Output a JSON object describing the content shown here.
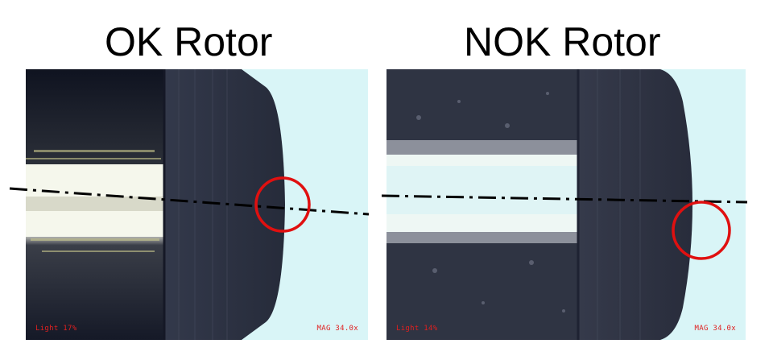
{
  "panels": [
    {
      "title": "OK Rotor",
      "light": "Light 17%",
      "mag": "MAG 34.0x"
    },
    {
      "title": "NOK Rotor",
      "light": "Light 14%",
      "mag": "MAG 34.0x"
    }
  ],
  "colors": {
    "highlight_circle": "#e01010",
    "background_light": "#d9f5f7",
    "rotor_dark": "#2a2f3f",
    "centerline": "#000000"
  }
}
